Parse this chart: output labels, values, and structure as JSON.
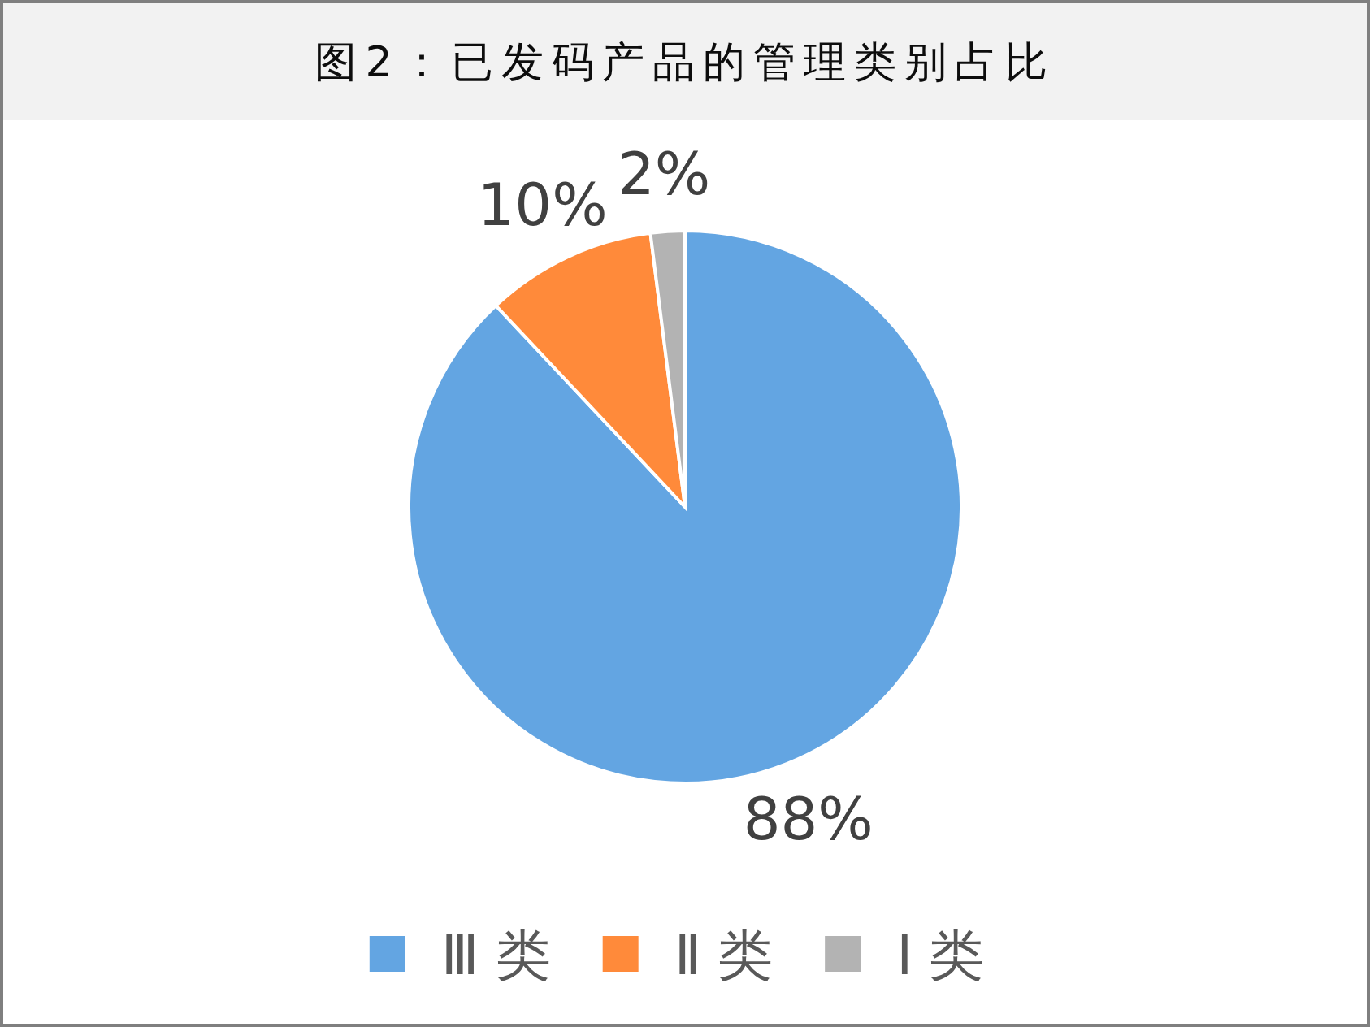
{
  "chart_data": {
    "type": "pie",
    "title": "图2：已发码产品的管理类别占比",
    "categories": [
      "Ⅲ类",
      "Ⅱ类",
      "Ⅰ类"
    ],
    "values": [
      88,
      10,
      2
    ],
    "colors": [
      "#63a5e2",
      "#ff8a3a",
      "#b3b3b3"
    ],
    "value_labels": [
      "88%",
      "10%",
      "2%"
    ],
    "legend": "bottom"
  }
}
